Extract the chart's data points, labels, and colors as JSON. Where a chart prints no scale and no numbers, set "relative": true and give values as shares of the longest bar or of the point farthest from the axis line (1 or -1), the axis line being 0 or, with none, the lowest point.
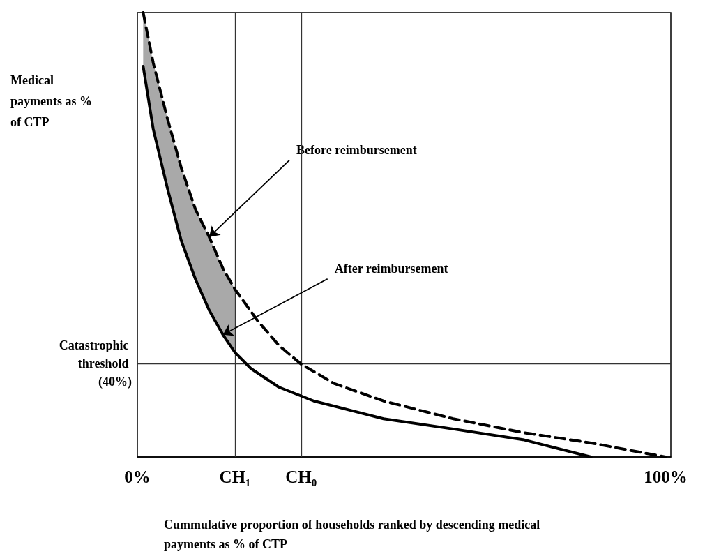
{
  "chart_data": {
    "type": "line",
    "relative": true,
    "ylabel": "Medical payments as % of CTP",
    "xlabel": "Cummulative proportion of households ranked by descending medical payments as % of CTP",
    "xlim": [
      0,
      101
    ],
    "xticks": [
      {
        "value": 0,
        "label": "0%"
      },
      {
        "value": 18.5,
        "label": "CH₁"
      },
      {
        "value": 31,
        "label": "CH₀"
      },
      {
        "value": 100,
        "label": "100%"
      }
    ],
    "grid": false,
    "marker": "none",
    "series": [
      {
        "color": "#000000",
        "line_style": "solid",
        "x": [
          1.1,
          3.0,
          5.7,
          8.3,
          11.0,
          13.6,
          16.2,
          18.5,
          21.5,
          26.8,
          33.4,
          46.6,
          59.8,
          73.0,
          85.9
        ],
        "values": [
          0.879,
          0.738,
          0.604,
          0.487,
          0.4,
          0.33,
          0.275,
          0.235,
          0.199,
          0.157,
          0.126,
          0.086,
          0.063,
          0.039,
          0
        ],
        "lower": [
          0.879,
          0.738,
          0.604,
          0.487,
          0.4,
          0.33,
          0.275,
          0.235,
          null,
          null,
          null,
          null,
          null,
          null,
          null
        ],
        "upper": [
          1,
          0.887,
          0.761,
          0.651,
          0.557,
          0.495,
          0.424,
          0.377,
          null,
          null,
          null,
          null,
          null,
          null,
          null
        ]
      },
      {
        "color": "#000000",
        "line_style": "dashed",
        "x": [
          1.1,
          3.0,
          5.7,
          8.3,
          11.0,
          13.6,
          16.2,
          18.5,
          22.8,
          26.8,
          31.0,
          37.3,
          46.6,
          59.8,
          73.0,
          86.1,
          100
        ],
        "values": [
          1,
          0.887,
          0.761,
          0.651,
          0.557,
          0.495,
          0.424,
          0.377,
          0.306,
          0.251,
          0.209,
          0.165,
          0.126,
          0.086,
          0.055,
          0.031,
          0
        ]
      }
    ],
    "ref_lines": [
      {
        "axis": "y",
        "value": 0.209,
        "label": "Catastrophic threshold (40%)",
        "color": "#333333"
      },
      {
        "axis": "x",
        "value": 18.5,
        "color": "#333333"
      },
      {
        "axis": "x",
        "value": 31,
        "color": "#333333"
      }
    ],
    "annotations": [
      {
        "text": "Before reimbursement",
        "x": 13.6,
        "y": 0.495
      },
      {
        "text": "After reimbursement",
        "x": 16.2,
        "y": 0.275
      }
    ]
  }
}
